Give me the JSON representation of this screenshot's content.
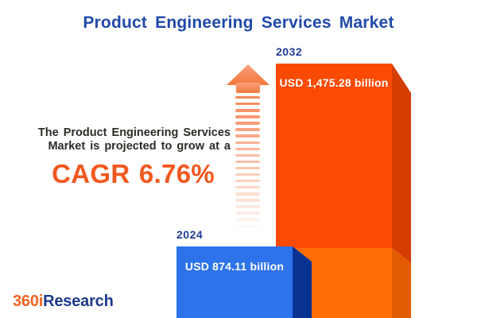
{
  "title": "Product Engineering Services Market",
  "annotation": {
    "line1": "The Product Engineering Services",
    "line2": "Market is projected to grow at a",
    "cagr": "CAGR 6.76%"
  },
  "chart_data": {
    "type": "bar",
    "title": "Product Engineering Services Market",
    "categories": [
      "2024",
      "2032"
    ],
    "values": [
      874.11,
      1475.28
    ],
    "unit": "USD billion",
    "value_labels": [
      "USD 874.11 billion",
      "USD 1,475.28 billion"
    ],
    "cagr_percent": 6.76,
    "orientation": "vertical",
    "legend": "none",
    "bar_colors": [
      "#2E73EB",
      "#FB4A01"
    ],
    "annotations": [
      "growth arrow between annotation text and 2032 bar"
    ]
  },
  "logo": {
    "part1": "360i",
    "part2": "Research"
  },
  "colors": {
    "title_blue": "#2149A8",
    "year_label_blue": "#203C96",
    "annotation_text": "#2D2A26",
    "cagr_orange": "#F2581E",
    "blue_bar_face": "#2E73EB",
    "blue_bar_side": "#0A3391",
    "orange_bar_face_upper": "#FB4A01",
    "orange_bar_face_lower": "#FF6D06",
    "orange_bar_side_upper": "#D63D01",
    "orange_bar_side_lower": "#E35C01",
    "arrow_orange": "#F6875A",
    "logo_orange": "#F26522",
    "logo_blue": "#1E3A8C",
    "background": "#FFFFFF"
  }
}
